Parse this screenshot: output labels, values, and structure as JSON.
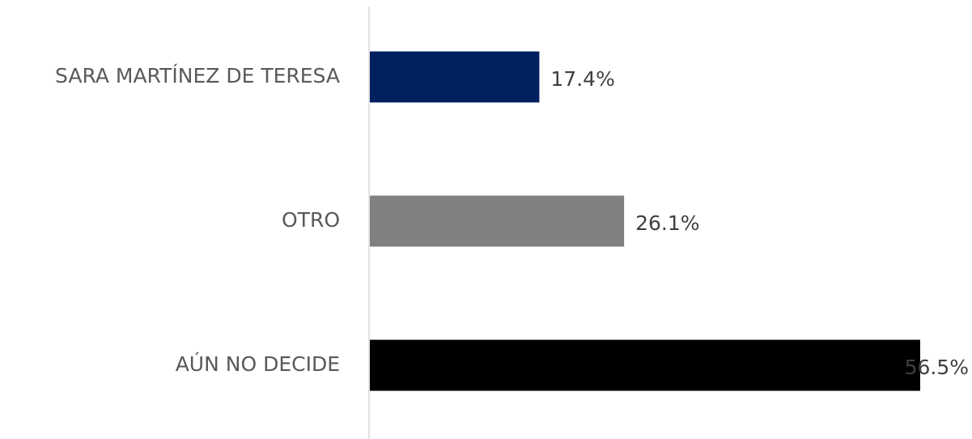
{
  "chart_data": {
    "type": "bar",
    "orientation": "horizontal",
    "categories": [
      "SARA MARTÍNEZ DE TERESA",
      "OTRO",
      "AÚN NO DECIDE"
    ],
    "values": [
      17.4,
      26.1,
      56.5
    ],
    "value_labels": [
      "17.4%",
      "26.1%",
      "56.5%"
    ],
    "colors": [
      "#002060",
      "#808080",
      "#000000"
    ]
  }
}
